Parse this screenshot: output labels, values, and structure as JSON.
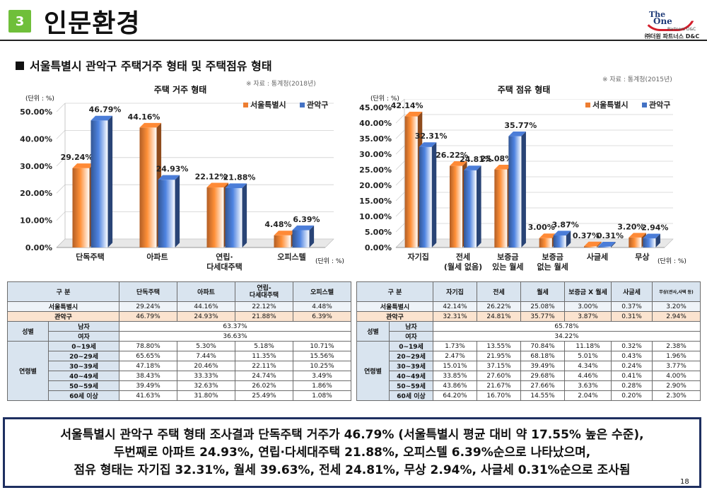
{
  "header": {
    "section_number": "3",
    "title": "인문환경",
    "logo": {
      "line1": "The",
      "line2": "One",
      "line3": "Partners D&C",
      "line4": "㈜더원 파트너스 D&C"
    }
  },
  "subtitle": "서울특별시 관악구 주택거주 형태 및 주택점유 형태",
  "legend": {
    "seoul": "서울특별시",
    "gwanak": "관악구"
  },
  "colors": {
    "seoul": "#ed7d31",
    "gwanak": "#4472c4"
  },
  "chart_data": [
    {
      "type": "bar",
      "title": "주택 거주 형태",
      "source": "※ 자료 : 통계청(2018년)",
      "unit_top": "(단위 : %)",
      "unit_bottom": "(단위 : %)",
      "categories": [
        "단독주택",
        "아파트",
        "연립·\n다세대주택",
        "오피스텔"
      ],
      "series": [
        {
          "name": "서울특별시",
          "values": [
            29.24,
            44.16,
            22.12,
            4.48
          ]
        },
        {
          "name": "관악구",
          "values": [
            46.79,
            24.93,
            21.88,
            6.39
          ]
        }
      ],
      "ylim": [
        0,
        50
      ],
      "yticks": [
        "0.00%",
        "10.00%",
        "20.00%",
        "30.00%",
        "40.00%",
        "50.00%"
      ],
      "legend_position": "top-right"
    },
    {
      "type": "bar",
      "title": "주택 점유 형태",
      "source": "※ 자료 : 통계청(2015년)",
      "unit_top": "(단위 : %)",
      "unit_bottom": "(단위 : %)",
      "categories": [
        "자기집",
        "전세\n(월세 없음)",
        "보증금\n있는 월세",
        "보증금\n없는 월세",
        "사글세",
        "무상"
      ],
      "series": [
        {
          "name": "서울특별시",
          "values": [
            42.14,
            26.22,
            25.08,
            3.0,
            0.37,
            3.2
          ]
        },
        {
          "name": "관악구",
          "values": [
            32.31,
            24.81,
            35.77,
            3.87,
            0.31,
            2.94
          ]
        }
      ],
      "ylim": [
        0,
        45
      ],
      "yticks": [
        "0.00%",
        "5.00%",
        "10.00%",
        "15.00%",
        "20.00%",
        "25.00%",
        "30.00%",
        "35.00%",
        "40.00%",
        "45.00%"
      ],
      "legend_position": "top-right"
    }
  ],
  "table1": {
    "headers": [
      "구 분",
      "단독주택",
      "아파트",
      "연립-\n다세대주택",
      "오피스텔"
    ],
    "seoul": {
      "label": "서울특별시",
      "values": [
        "29.24%",
        "44.16%",
        "22.12%",
        "4.48%"
      ]
    },
    "gwanak": {
      "label": "관악구",
      "values": [
        "46.79%",
        "24.93%",
        "21.88%",
        "6.39%"
      ]
    },
    "gender": {
      "label": "성별",
      "rows": [
        {
          "label": "남자",
          "value": "63.37%"
        },
        {
          "label": "여자",
          "value": "36.63%"
        }
      ]
    },
    "age": {
      "label": "연령별",
      "rows": [
        {
          "label": "0~19세",
          "values": [
            "78.80%",
            "5.30%",
            "5.18%",
            "10.71%"
          ]
        },
        {
          "label": "20~29세",
          "values": [
            "65.65%",
            "7.44%",
            "11.35%",
            "15.56%"
          ]
        },
        {
          "label": "30~39세",
          "values": [
            "47.18%",
            "20.46%",
            "22.11%",
            "10.25%"
          ]
        },
        {
          "label": "40~49세",
          "values": [
            "38.43%",
            "33.33%",
            "24.74%",
            "3.49%"
          ]
        },
        {
          "label": "50~59세",
          "values": [
            "39.49%",
            "32.63%",
            "26.02%",
            "1.86%"
          ]
        },
        {
          "label": "60세 이상",
          "values": [
            "41.63%",
            "31.80%",
            "25.49%",
            "1.08%"
          ]
        }
      ]
    }
  },
  "table2": {
    "headers": [
      "구 분",
      "자기집",
      "전세",
      "월세",
      "보증금 X 월세",
      "사글세",
      "무상(관사,사택 등)"
    ],
    "seoul": {
      "label": "서울특별시",
      "values": [
        "42.14%",
        "26.22%",
        "25.08%",
        "3.00%",
        "0.37%",
        "3.20%"
      ]
    },
    "gwanak": {
      "label": "관악구",
      "values": [
        "32.31%",
        "24.81%",
        "35.77%",
        "3.87%",
        "0.31%",
        "2.94%"
      ]
    },
    "gender": {
      "label": "성별",
      "rows": [
        {
          "label": "남자",
          "value": "65.78%"
        },
        {
          "label": "여자",
          "value": "34.22%"
        }
      ]
    },
    "age": {
      "label": "연령별",
      "rows": [
        {
          "label": "0~19세",
          "values": [
            "1.73%",
            "13.55%",
            "70.84%",
            "11.18%",
            "0.32%",
            "2.38%"
          ]
        },
        {
          "label": "20~29세",
          "values": [
            "2.47%",
            "21.95%",
            "68.18%",
            "5.01%",
            "0.43%",
            "1.96%"
          ]
        },
        {
          "label": "30~39세",
          "values": [
            "15.01%",
            "37.15%",
            "39.49%",
            "4.34%",
            "0.24%",
            "3.77%"
          ]
        },
        {
          "label": "40~49세",
          "values": [
            "33.85%",
            "27.60%",
            "29.68%",
            "4.46%",
            "0.41%",
            "4.00%"
          ]
        },
        {
          "label": "50~59세",
          "values": [
            "43.86%",
            "21.67%",
            "27.66%",
            "3.63%",
            "0.28%",
            "2.90%"
          ]
        },
        {
          "label": "60세 이상",
          "values": [
            "64.20%",
            "16.70%",
            "14.55%",
            "2.04%",
            "0.20%",
            "2.30%"
          ]
        }
      ]
    }
  },
  "summary": [
    "서울특별시 관악구 주택 형태 조사결과 단독주택 거주가 46.79% (서울특별시 평균 대비 약 17.55% 높은 수준),",
    "두번째로 아파트 24.93%, 연립·다세대주택 21.88%, 오피스텔 6.39%순으로 나타났으며,",
    "점유 형태는 자기집 32.31%, 월세 39.63%, 전세 24.81%, 무상 2.94%, 사글세 0.31%순으로 조사됨"
  ],
  "page_number": "18"
}
